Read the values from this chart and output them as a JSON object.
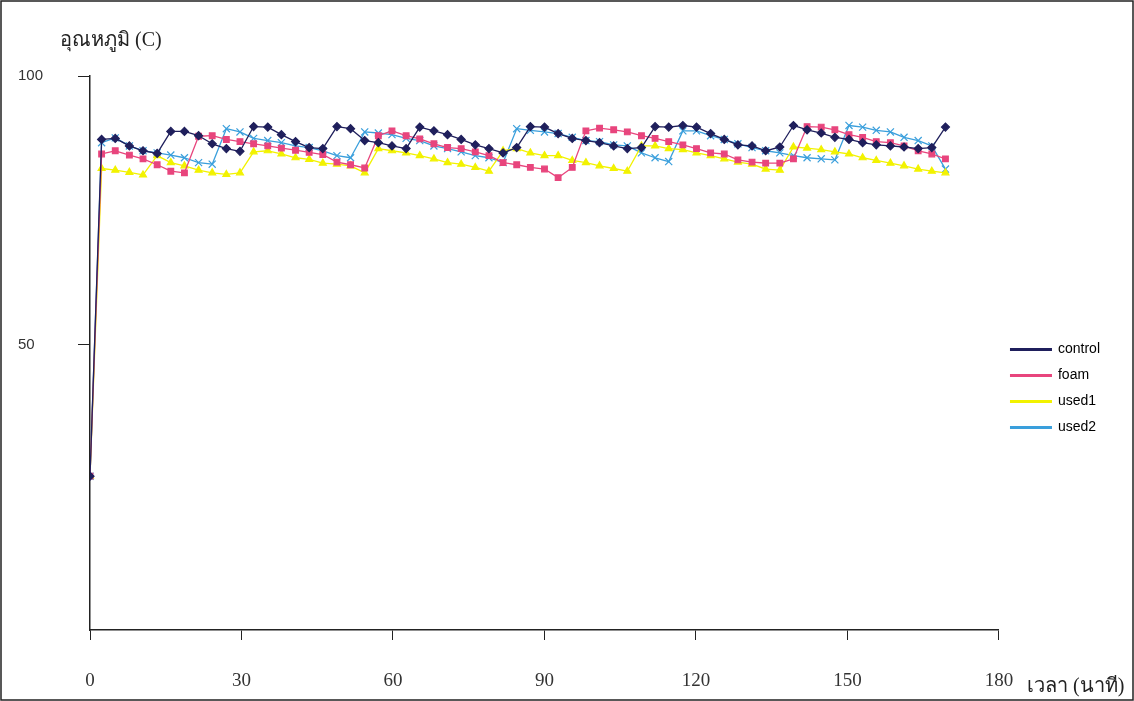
{
  "chart_data": {
    "type": "line",
    "xlabel": "เวลา (นาที)",
    "ylabel": "อุณหภูมิ (C)",
    "x": [
      0,
      2.3,
      5.0,
      7.8,
      10.5,
      13.3,
      16.0,
      18.7,
      21.5,
      24.2,
      27.0,
      29.7,
      32.4,
      35.2,
      37.9,
      40.7,
      43.4,
      46.1,
      48.9,
      51.6,
      54.4,
      57.1,
      59.8,
      62.6,
      65.3,
      68.1,
      70.8,
      73.5,
      76.3,
      79.0,
      81.8,
      84.5,
      87.2,
      90.0,
      92.7,
      95.5,
      98.2,
      100.9,
      103.7,
      106.4,
      109.2,
      111.9,
      114.6,
      117.4,
      120.1,
      122.9,
      125.6,
      128.3,
      131.1,
      133.8,
      136.6,
      139.3,
      142.0,
      144.8,
      147.5,
      150.3,
      153.0,
      155.7,
      158.5,
      161.2,
      164.0,
      166.7,
      169.4
    ],
    "series": [
      {
        "name": "control",
        "color": "#1f1f5c",
        "marker": "diamond",
        "values": [
          25.6,
          88.2,
          88.4,
          87.0,
          86.1,
          85.6,
          89.7,
          89.7,
          88.9,
          87.4,
          86.5,
          86.0,
          90.6,
          90.5,
          89.1,
          87.8,
          86.7,
          86.5,
          90.6,
          90.2,
          88.0,
          87.6,
          87.0,
          86.5,
          90.5,
          89.8,
          89.1,
          88.2,
          87.2,
          86.5,
          85.7,
          86.7,
          90.6,
          90.5,
          89.3,
          88.4,
          88.0,
          87.6,
          87.0,
          86.5,
          86.7,
          90.6,
          90.5,
          90.8,
          90.5,
          89.3,
          88.2,
          87.2,
          87.0,
          86.1,
          86.8,
          90.8,
          90.0,
          89.4,
          88.6,
          88.2,
          87.6,
          87.2,
          87.0,
          86.8,
          86.5,
          86.7,
          90.5
        ]
      },
      {
        "name": "foam",
        "color": "#e8457d",
        "marker": "square",
        "values": [
          25.6,
          85.5,
          86.1,
          85.3,
          84.6,
          83.5,
          82.3,
          82.0,
          88.8,
          88.9,
          88.2,
          87.8,
          87.4,
          87.0,
          86.6,
          86.2,
          85.8,
          85.4,
          84.0,
          83.5,
          82.9,
          88.9,
          89.8,
          88.9,
          88.3,
          87.4,
          86.7,
          86.5,
          85.9,
          85.2,
          83.9,
          83.5,
          83.0,
          82.7,
          81.1,
          83.0,
          89.8,
          90.3,
          90.0,
          89.6,
          88.9,
          88.4,
          87.8,
          87.2,
          86.5,
          85.7,
          85.5,
          84.4,
          84.0,
          83.8,
          83.8,
          84.6,
          90.6,
          90.5,
          90.0,
          89.1,
          88.6,
          87.8,
          87.6,
          87.0,
          86.1,
          85.5,
          84.6
        ]
      },
      {
        "name": "used1",
        "color": "#f2f200",
        "marker": "triangle",
        "values": [
          25.6,
          82.8,
          82.5,
          82.1,
          81.6,
          85.2,
          83.9,
          83.3,
          82.5,
          82.0,
          81.7,
          82.0,
          85.9,
          86.1,
          85.5,
          84.8,
          84.5,
          83.8,
          83.6,
          83.3,
          82.0,
          86.5,
          86.1,
          85.7,
          85.2,
          84.6,
          83.9,
          83.6,
          83.0,
          82.3,
          86.1,
          86.5,
          85.7,
          85.2,
          85.2,
          84.3,
          83.9,
          83.3,
          82.8,
          82.3,
          87.0,
          87.0,
          86.5,
          86.3,
          85.7,
          85.2,
          84.6,
          84.0,
          83.6,
          82.7,
          82.5,
          86.8,
          86.6,
          86.3,
          85.9,
          85.5,
          84.8,
          84.3,
          83.8,
          83.3,
          82.7,
          82.3,
          82.0
        ]
      },
      {
        "name": "used2",
        "color": "#3a9fdc",
        "marker": "cross",
        "values": [
          25.6,
          87.6,
          88.5,
          87.0,
          86.1,
          85.7,
          85.3,
          84.8,
          83.9,
          83.6,
          90.2,
          89.6,
          88.4,
          88.0,
          87.6,
          87.0,
          86.7,
          86.1,
          85.2,
          84.8,
          89.6,
          89.4,
          89.1,
          88.4,
          88.0,
          87.0,
          86.5,
          85.9,
          85.2,
          84.8,
          83.9,
          90.2,
          89.9,
          89.6,
          89.3,
          88.6,
          88.0,
          87.8,
          87.2,
          87.0,
          85.7,
          84.8,
          84.1,
          89.8,
          89.8,
          88.9,
          88.2,
          87.4,
          86.7,
          86.1,
          85.7,
          85.2,
          84.8,
          84.6,
          84.4,
          90.8,
          90.5,
          89.9,
          89.6,
          88.6,
          88.0,
          87.0,
          82.7
        ]
      }
    ],
    "xlim": [
      0,
      180
    ],
    "xticks": [
      0,
      30,
      60,
      90,
      120,
      150,
      180
    ],
    "ylim": [
      -3,
      100
    ],
    "yticks": [
      50,
      100
    ],
    "grid": false,
    "legend": "right"
  }
}
